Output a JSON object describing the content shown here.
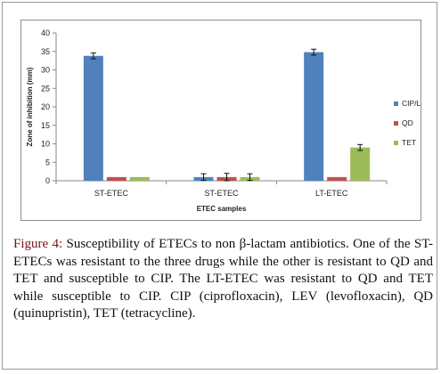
{
  "figure": {
    "caption_label": "Figure 4:",
    "caption_text": " Susceptibility of ETECs to non β-lactam antibiotics. One of the ST-ETECs was resistant to the three drugs while the other is resistant to QD and TET and susceptible to CIP. The LT-ETEC was resistant to QD and TET while susceptible to CIP. CIP (ciprofloxacin), LEV (levofloxacin), QD (quinupristin), TET (tetracycline)."
  },
  "chart_data": {
    "type": "bar",
    "categories": [
      "ST-ETEC",
      "ST-ETEC",
      "LT-ETEC"
    ],
    "series": [
      {
        "name": "CIP/LEV",
        "color": "#4f81bd",
        "values": [
          33.8,
          1.0,
          34.8
        ],
        "errors": [
          0.8,
          0.9,
          0.8
        ]
      },
      {
        "name": "QD",
        "color": "#c0504d",
        "values": [
          1.0,
          1.0,
          1.0
        ],
        "errors": [
          0.0,
          1.0,
          0.0
        ]
      },
      {
        "name": "TET",
        "color": "#9bbb59",
        "values": [
          1.0,
          1.0,
          9.0
        ],
        "errors": [
          0.0,
          0.9,
          0.8
        ]
      }
    ],
    "xlabel": "ETEC samples",
    "ylabel": "Zone of inhibition (mm)",
    "ylim": [
      0,
      40
    ],
    "yticks": [
      "0",
      "5",
      "10",
      "15",
      "20",
      "25",
      "30",
      "35",
      "40"
    ],
    "grid": false,
    "legend_position": "right"
  }
}
